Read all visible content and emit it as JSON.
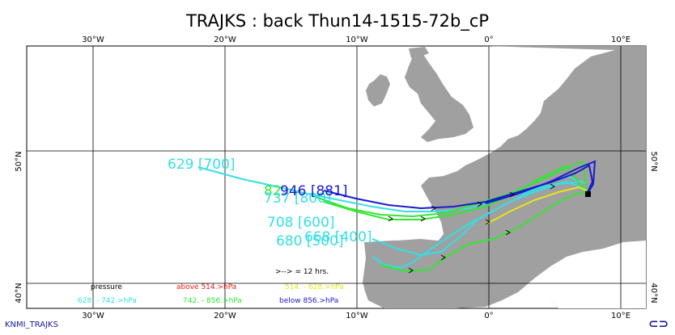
{
  "title": "TRAJKS : back Thun14-1515-72b_cP",
  "footer": "KNMI_TRAJKS",
  "axes": {
    "lon_top": [
      "30°W",
      "20°W",
      "10°W",
      "0°",
      "10°E"
    ],
    "lon_bottom": [
      "30°W",
      "20°W",
      "10°W",
      "0°",
      "10°E"
    ],
    "lat_left": [
      "50°N",
      "40°N"
    ],
    "lat_right": [
      "50°N",
      "40°N"
    ]
  },
  "trajectory_labels": [
    {
      "text": "629 [700]",
      "color": "#33dfe6"
    },
    {
      "text": "82",
      "color": "#33e633"
    },
    {
      "text": "737 [800]",
      "color": "#33dfe6"
    },
    {
      "text": "946 [881]",
      "color": "#1a1acc"
    },
    {
      "text": "708 [600]",
      "color": "#33dfe6"
    },
    {
      "text": "668 [400]",
      "color": "#33dfe6"
    },
    {
      "text": "680 [500]",
      "color": "#33dfe6"
    }
  ],
  "legend": {
    "interval": ">--> = 12 hrs.",
    "pressure": "pressure",
    "above": "above  514.>hPa",
    "r1": "514.  -    628.>hPa",
    "r2": "628.  -    742.>hPa",
    "r3": "742.  -    856.>hPa",
    "below": "below   856.>hPa"
  },
  "colors": {
    "above": "#e61a1a",
    "r1": "#e6e61a",
    "r2": "#33dfe6",
    "r3": "#33e633",
    "below": "#1a1acc",
    "land": "#a0a0a0",
    "sea": "#ffffff"
  },
  "logo_icon": "knmi-logo-icon"
}
